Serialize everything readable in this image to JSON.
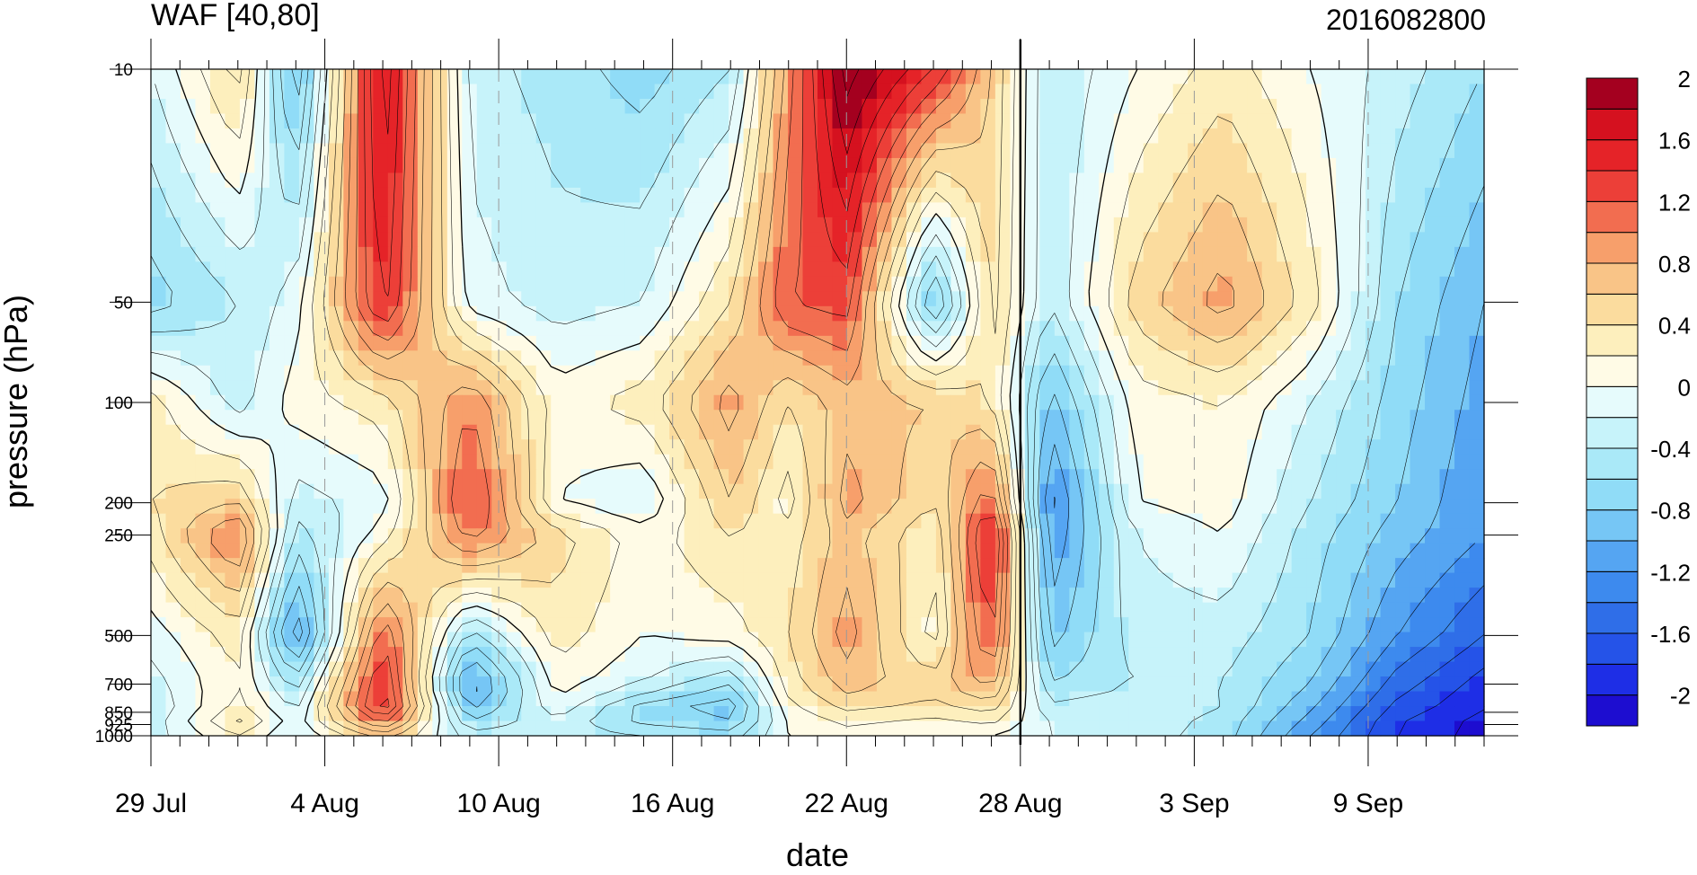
{
  "chart_data": {
    "type": "heatmap",
    "title": "WAF [40,80]",
    "subtitle": "2016082800",
    "xlabel": "date",
    "ylabel": "pressure (hPa)",
    "y_scale": "log",
    "y_reversed": true,
    "ylim": [
      1000,
      10
    ],
    "y_ticks": [
      10,
      50,
      100,
      200,
      250,
      500,
      700,
      850,
      925,
      1000
    ],
    "y_tick_labels": [
      "10",
      "50",
      "100",
      "200",
      "250",
      "500",
      "700",
      "850",
      "925",
      "1000"
    ],
    "xlim": [
      "2016-07-29",
      "2016-09-13"
    ],
    "x_ticks": [
      "2016-07-29",
      "2016-08-04",
      "2016-08-10",
      "2016-08-16",
      "2016-08-22",
      "2016-08-28",
      "2016-09-03",
      "2016-09-09"
    ],
    "x_tick_labels": [
      "29 Jul",
      "4 Aug",
      "10 Aug",
      "16 Aug",
      "22 Aug",
      "28 Aug",
      "3 Sep",
      "9 Sep"
    ],
    "marker_line_date": "2016-08-28",
    "grid": true,
    "colorbar": {
      "levels": [
        -2.2,
        -2.0,
        -1.8,
        -1.6,
        -1.4,
        -1.2,
        -1.0,
        -0.8,
        -0.6,
        -0.4,
        -0.2,
        0.0,
        0.2,
        0.4,
        0.6,
        0.8,
        1.0,
        1.2,
        1.4,
        1.6,
        1.8,
        2.0,
        2.2
      ],
      "colors": [
        "#1d0dd0",
        "#1e2ee6",
        "#2553e8",
        "#2f6ee8",
        "#3d8aee",
        "#55a5f2",
        "#76c6f5",
        "#90dcf7",
        "#aae9f8",
        "#c7f3fa",
        "#e6fbfc",
        "#fffbe6",
        "#fdefbd",
        "#fbdc9e",
        "#f9c487",
        "#f79f6b",
        "#f26d50",
        "#ec3f38",
        "#e52328",
        "#d5111f",
        "#a4001f"
      ],
      "tick_values": [
        -2,
        -1.6,
        -1.2,
        -0.8,
        -0.4,
        0,
        0.4,
        0.8,
        1.2,
        1.6,
        2
      ],
      "tick_labels": [
        "-2",
        "-1.6",
        "-1.2",
        "-0.8",
        "-0.4",
        "0",
        "0.4",
        "0.8",
        "1.2",
        "1.6",
        "2"
      ],
      "placement": "right"
    },
    "times": [
      "2016-07-29",
      "2016-08-01",
      "2016-08-03",
      "2016-08-06",
      "2016-08-09",
      "2016-08-12",
      "2016-08-15",
      "2016-08-18",
      "2016-08-20",
      "2016-08-22",
      "2016-08-25",
      "2016-08-27",
      "2016-08-29",
      "2016-09-01",
      "2016-09-04",
      "2016-09-07",
      "2016-09-10",
      "2016-09-13"
    ],
    "levels": [
      10,
      50,
      100,
      200,
      250,
      500,
      700,
      850,
      925,
      1000
    ],
    "values": [
      [
        -0.2,
        0.5,
        -1.0,
        1.8,
        -0.3,
        -0.5,
        -0.7,
        -0.4,
        0.9,
        2.1,
        1.4,
        0.6,
        -0.4,
        0.0,
        0.3,
        0.0,
        -0.3,
        -0.6
      ],
      [
        -0.7,
        -0.4,
        -0.1,
        1.5,
        -0.1,
        -0.3,
        -0.2,
        0.4,
        1.2,
        1.3,
        -0.9,
        0.5,
        -0.4,
        0.5,
        0.9,
        0.3,
        -0.6,
        -1.0
      ],
      [
        0.3,
        -0.3,
        0.1,
        0.3,
        1.0,
        0.1,
        0.3,
        0.9,
        0.4,
        0.7,
        0.6,
        0.4,
        -0.9,
        0.1,
        0.2,
        -0.2,
        -0.7,
        -1.1
      ],
      [
        0.4,
        0.6,
        -0.3,
        -0.1,
        1.3,
        0.0,
        -0.2,
        0.6,
        0.1,
        0.9,
        0.4,
        1.2,
        -1.3,
        0.0,
        0.1,
        -0.4,
        -0.8,
        -1.2
      ],
      [
        0.3,
        1.1,
        -0.5,
        0.1,
        1.1,
        0.5,
        0.1,
        0.4,
        0.3,
        0.7,
        0.2,
        1.6,
        -1.2,
        -0.2,
        0.0,
        -0.5,
        -0.9,
        -1.2
      ],
      [
        -0.1,
        0.3,
        -1.2,
        1.2,
        -0.5,
        0.3,
        0.0,
        0.1,
        0.4,
        0.9,
        0.1,
        1.3,
        -0.9,
        -0.3,
        -0.3,
        -0.6,
        -1.2,
        -1.6
      ],
      [
        -0.3,
        0.2,
        -0.5,
        1.5,
        -1.2,
        0.1,
        -0.2,
        -0.6,
        0.3,
        0.7,
        0.5,
        0.9,
        -0.6,
        -0.4,
        -0.4,
        -0.8,
        -1.5,
        -1.9
      ],
      [
        -0.4,
        0.3,
        -0.2,
        1.6,
        -0.8,
        -0.1,
        -0.8,
        -1.0,
        0.1,
        0.4,
        0.3,
        0.4,
        -0.3,
        -0.2,
        -0.4,
        -1.0,
        -1.7,
        -2.0
      ],
      [
        -0.3,
        0.5,
        -0.1,
        0.9,
        -0.5,
        -0.3,
        -0.6,
        -0.7,
        0.0,
        0.2,
        0.1,
        0.2,
        -0.2,
        -0.3,
        -0.5,
        -1.1,
        -1.8,
        -2.1
      ],
      [
        -0.3,
        0.2,
        -0.2,
        0.5,
        -0.3,
        -0.3,
        -0.4,
        -0.5,
        0.0,
        0.1,
        0.0,
        0.0,
        -0.2,
        -0.3,
        -0.5,
        -1.2,
        -1.8,
        -2.1
      ]
    ]
  }
}
